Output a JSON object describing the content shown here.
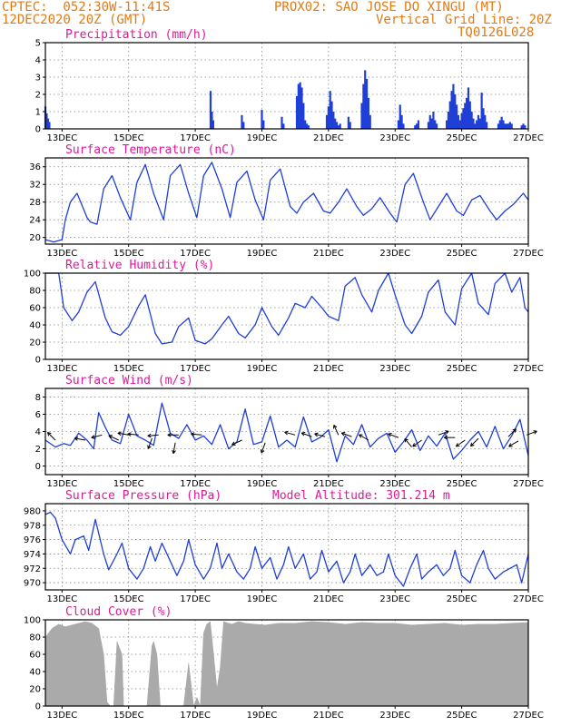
{
  "header": {
    "line1_left": "CPTEC:  052:30W-11:41S",
    "line1_right": "PROX02: SAO JOSE DO XINGU (MT)",
    "line2_left": "12DEC2020 20Z (GMT)",
    "line2_right": "Vertical Grid Line: 20Z",
    "line3_right": "TQ0126L028"
  },
  "colors": {
    "header": "#e07a16",
    "title": "#e0189a",
    "line": "#1f3fd6",
    "cloud": "#aaaaaa"
  },
  "chart_data": [
    {
      "type": "bar",
      "title": "Precipitation (mm/h)",
      "ylim": [
        0,
        5
      ],
      "yticks": [
        0,
        1,
        2,
        3,
        4,
        5
      ],
      "xlim": [
        0,
        14.5
      ],
      "xticks": [
        {
          "x": 0.5,
          "label": "13DEC"
        },
        {
          "x": 2.5,
          "label": "15DEC"
        },
        {
          "x": 4.5,
          "label": "17DEC"
        },
        {
          "x": 6.5,
          "label": "19DEC"
        },
        {
          "x": 8.5,
          "label": "21DEC"
        },
        {
          "x": 10.5,
          "label": "23DEC"
        },
        {
          "x": 12.5,
          "label": "25DEC"
        },
        {
          "x": 14.5,
          "label": "27DEC"
        }
      ],
      "x": [
        0.0,
        0.04,
        0.08,
        0.12,
        4.96,
        5.0,
        5.04,
        5.9,
        5.95,
        6.5,
        6.55,
        7.1,
        7.15,
        7.55,
        7.6,
        7.65,
        7.7,
        7.75,
        7.8,
        7.85,
        7.9,
        8.45,
        8.5,
        8.55,
        8.6,
        8.65,
        8.7,
        8.75,
        8.8,
        8.85,
        9.1,
        9.15,
        9.5,
        9.55,
        9.6,
        9.65,
        9.7,
        9.75,
        10.6,
        10.65,
        10.7,
        10.75,
        11.1,
        11.15,
        11.2,
        11.5,
        11.55,
        11.6,
        11.65,
        11.7,
        11.75,
        12.05,
        12.1,
        12.15,
        12.2,
        12.25,
        12.3,
        12.35,
        12.4,
        12.45,
        12.5,
        12.55,
        12.6,
        12.65,
        12.7,
        12.75,
        12.8,
        12.85,
        12.9,
        12.95,
        13.0,
        13.05,
        13.1,
        13.15,
        13.2,
        13.25,
        13.6,
        13.65,
        13.7,
        13.75,
        13.8,
        13.85,
        13.9,
        13.95,
        14.0,
        14.3,
        14.35,
        14.4
      ],
      "values": [
        1.3,
        0.9,
        0.6,
        0.4,
        2.2,
        1.0,
        0.5,
        0.8,
        0.4,
        1.1,
        0.5,
        0.7,
        0.3,
        1.9,
        2.6,
        2.7,
        2.4,
        1.5,
        0.5,
        0.3,
        0.2,
        0.8,
        1.3,
        2.2,
        1.6,
        1.0,
        0.6,
        0.4,
        0.2,
        0.3,
        0.7,
        0.4,
        1.5,
        2.6,
        3.4,
        2.9,
        1.8,
        0.8,
        0.5,
        1.4,
        0.8,
        0.3,
        0.2,
        0.3,
        0.5,
        0.4,
        0.8,
        0.6,
        1.0,
        0.5,
        0.3,
        0.5,
        1.0,
        1.6,
        2.2,
        2.6,
        2.0,
        1.4,
        0.8,
        0.5,
        0.9,
        1.2,
        1.5,
        1.8,
        2.4,
        1.6,
        1.0,
        0.6,
        0.3,
        0.5,
        0.8,
        0.6,
        2.1,
        1.2,
        0.8,
        0.4,
        0.3,
        0.5,
        0.7,
        0.5,
        0.3,
        0.3,
        0.3,
        0.4,
        0.3,
        0.2,
        0.3,
        0.2
      ]
    },
    {
      "type": "line",
      "title": "Surface Temperature (nC)",
      "ylim": [
        18.5,
        38
      ],
      "yticks": [
        20,
        24,
        28,
        32,
        36
      ],
      "xlim": [
        0,
        14.5
      ],
      "xticks": [
        {
          "x": 0.5,
          "label": "13DEC"
        },
        {
          "x": 2.5,
          "label": "15DEC"
        },
        {
          "x": 4.5,
          "label": "17DEC"
        },
        {
          "x": 6.5,
          "label": "19DEC"
        },
        {
          "x": 8.5,
          "label": "21DEC"
        },
        {
          "x": 10.5,
          "label": "23DEC"
        },
        {
          "x": 12.5,
          "label": "25DEC"
        },
        {
          "x": 14.5,
          "label": "27DEC"
        }
      ],
      "x": [
        0.0,
        0.25,
        0.5,
        0.6,
        0.75,
        0.95,
        1.25,
        1.35,
        1.55,
        1.75,
        2.0,
        2.25,
        2.55,
        2.75,
        3.0,
        3.25,
        3.55,
        3.75,
        4.05,
        4.3,
        4.55,
        4.75,
        5.0,
        5.3,
        5.55,
        5.75,
        6.05,
        6.3,
        6.55,
        6.75,
        7.05,
        7.35,
        7.55,
        7.75,
        8.05,
        8.35,
        8.55,
        8.8,
        9.05,
        9.35,
        9.55,
        9.8,
        10.05,
        10.35,
        10.55,
        10.8,
        11.05,
        11.35,
        11.55,
        11.8,
        12.05,
        12.35,
        12.55,
        12.8,
        13.05,
        13.35,
        13.55,
        13.8,
        14.05,
        14.35,
        14.5
      ],
      "values": [
        19.5,
        19.0,
        19.5,
        24.0,
        28.0,
        30.0,
        24.5,
        23.5,
        23.0,
        31.0,
        34.0,
        29.0,
        24.0,
        32.5,
        36.5,
        30.0,
        24.0,
        34.0,
        36.5,
        30.0,
        24.5,
        34.0,
        37.0,
        31.0,
        24.5,
        32.5,
        35.0,
        28.5,
        24.0,
        33.0,
        35.5,
        27.0,
        25.5,
        28.0,
        30.0,
        26.0,
        25.5,
        28.0,
        31.0,
        27.0,
        25.0,
        26.5,
        29.0,
        25.5,
        23.5,
        32.0,
        34.5,
        28.0,
        24.0,
        27.0,
        30.0,
        26.0,
        25.0,
        28.5,
        29.5,
        26.0,
        24.0,
        26.0,
        27.5,
        30.0,
        28.5
      ]
    },
    {
      "type": "line",
      "title": "Relative Humidity (%)",
      "ylim": [
        0,
        100
      ],
      "yticks": [
        0,
        20,
        40,
        60,
        80,
        100
      ],
      "xlim": [
        0,
        14.5
      ],
      "xticks": [
        {
          "x": 0.5,
          "label": "13DEC"
        },
        {
          "x": 2.5,
          "label": "15DEC"
        },
        {
          "x": 4.5,
          "label": "17DEC"
        },
        {
          "x": 6.5,
          "label": "19DEC"
        },
        {
          "x": 8.5,
          "label": "21DEC"
        },
        {
          "x": 10.5,
          "label": "23DEC"
        },
        {
          "x": 12.5,
          "label": "25DEC"
        },
        {
          "x": 14.5,
          "label": "27DEC"
        }
      ],
      "x": [
        0.0,
        0.4,
        0.55,
        0.8,
        1.0,
        1.25,
        1.5,
        1.8,
        2.0,
        2.25,
        2.5,
        2.8,
        3.0,
        3.3,
        3.5,
        3.8,
        4.0,
        4.3,
        4.5,
        4.8,
        5.0,
        5.3,
        5.5,
        5.8,
        6.0,
        6.3,
        6.5,
        6.8,
        7.0,
        7.3,
        7.5,
        7.8,
        8.0,
        8.3,
        8.5,
        8.8,
        9.0,
        9.3,
        9.5,
        9.8,
        10.0,
        10.3,
        10.5,
        10.8,
        11.0,
        11.3,
        11.5,
        11.8,
        12.0,
        12.3,
        12.5,
        12.8,
        13.0,
        13.3,
        13.5,
        13.8,
        14.0,
        14.25,
        14.4,
        14.5
      ],
      "values": [
        100,
        100,
        60,
        45,
        55,
        78,
        90,
        48,
        32,
        28,
        38,
        62,
        75,
        30,
        18,
        20,
        38,
        48,
        22,
        18,
        24,
        40,
        50,
        30,
        25,
        40,
        60,
        38,
        28,
        48,
        65,
        60,
        73,
        60,
        50,
        45,
        85,
        95,
        75,
        55,
        80,
        100,
        75,
        40,
        30,
        50,
        78,
        92,
        55,
        40,
        82,
        100,
        65,
        52,
        88,
        100,
        78,
        95,
        60,
        55
      ]
    },
    {
      "type": "line",
      "title": "Surface Wind (m/s)",
      "ylim": [
        -1,
        9
      ],
      "yticks": [
        0,
        2,
        4,
        6,
        8
      ],
      "xlim": [
        0,
        14.5
      ],
      "xticks": [
        {
          "x": 0.5,
          "label": "13DEC"
        },
        {
          "x": 2.5,
          "label": "15DEC"
        },
        {
          "x": 4.5,
          "label": "17DEC"
        },
        {
          "x": 6.5,
          "label": "19DEC"
        },
        {
          "x": 8.5,
          "label": "21DEC"
        },
        {
          "x": 10.5,
          "label": "23DEC"
        },
        {
          "x": 12.5,
          "label": "25DEC"
        },
        {
          "x": 14.5,
          "label": "27DEC"
        }
      ],
      "x": [
        0.0,
        0.3,
        0.55,
        0.75,
        1.0,
        1.25,
        1.45,
        1.6,
        1.8,
        2.0,
        2.25,
        2.5,
        2.75,
        3.0,
        3.25,
        3.5,
        3.75,
        4.0,
        4.25,
        4.5,
        4.75,
        5.0,
        5.25,
        5.5,
        5.75,
        6.0,
        6.25,
        6.5,
        6.75,
        7.0,
        7.25,
        7.5,
        7.75,
        8.0,
        8.25,
        8.5,
        8.75,
        9.0,
        9.25,
        9.5,
        9.75,
        10.0,
        10.25,
        10.5,
        10.75,
        11.0,
        11.25,
        11.5,
        11.75,
        12.0,
        12.25,
        12.5,
        12.75,
        13.0,
        13.25,
        13.5,
        13.75,
        14.0,
        14.25,
        14.5
      ],
      "values": [
        3.0,
        2.2,
        2.6,
        2.4,
        3.8,
        3.0,
        2.0,
        6.2,
        4.5,
        3.0,
        2.6,
        6.0,
        3.5,
        3.0,
        2.4,
        7.3,
        3.8,
        3.2,
        4.8,
        3.0,
        3.5,
        2.5,
        4.8,
        2.0,
        2.8,
        6.6,
        2.5,
        2.8,
        5.8,
        2.2,
        3.0,
        2.2,
        5.7,
        2.8,
        3.3,
        4.2,
        0.5,
        3.5,
        2.5,
        4.8,
        2.2,
        3.2,
        3.8,
        1.6,
        2.8,
        4.2,
        1.8,
        3.5,
        2.3,
        3.8,
        0.8,
        1.8,
        3.0,
        4.0,
        2.2,
        4.6,
        2.0,
        3.5,
        5.4,
        1.2
      ],
      "vectors": [
        {
          "x": 0.3,
          "y": 3.0,
          "dir": 135
        },
        {
          "x": 1.2,
          "y": 3.0,
          "dir": 170
        },
        {
          "x": 1.7,
          "y": 3.6,
          "dir": 195
        },
        {
          "x": 2.2,
          "y": 3.0,
          "dir": 155
        },
        {
          "x": 2.5,
          "y": 3.6,
          "dir": 170
        },
        {
          "x": 2.8,
          "y": 3.6,
          "dir": 175
        },
        {
          "x": 3.4,
          "y": 3.6,
          "dir": 185
        },
        {
          "x": 4.0,
          "y": 3.6,
          "dir": 180
        },
        {
          "x": 4.7,
          "y": 3.6,
          "dir": 175
        },
        {
          "x": 3.2,
          "y": 3.2,
          "dir": 250
        },
        {
          "x": 3.9,
          "y": 2.7,
          "dir": 260
        },
        {
          "x": 5.9,
          "y": 3.0,
          "dir": 205
        },
        {
          "x": 6.6,
          "y": 2.7,
          "dir": 250
        },
        {
          "x": 7.5,
          "y": 3.6,
          "dir": 165
        },
        {
          "x": 8.0,
          "y": 3.4,
          "dir": 160
        },
        {
          "x": 8.4,
          "y": 3.4,
          "dir": 165
        },
        {
          "x": 8.8,
          "y": 3.6,
          "dir": 115
        },
        {
          "x": 9.2,
          "y": 3.4,
          "dir": 160
        },
        {
          "x": 9.7,
          "y": 3.0,
          "dir": 150
        },
        {
          "x": 10.6,
          "y": 3.3,
          "dir": 160
        },
        {
          "x": 11.3,
          "y": 3.0,
          "dir": 215
        },
        {
          "x": 11.8,
          "y": 3.6,
          "dir": 20
        },
        {
          "x": 12.3,
          "y": 3.3,
          "dir": 180
        },
        {
          "x": 12.6,
          "y": 3.0,
          "dir": 215
        },
        {
          "x": 13.0,
          "y": 3.2,
          "dir": 225
        },
        {
          "x": 13.9,
          "y": 3.4,
          "dir": 45
        },
        {
          "x": 14.45,
          "y": 3.6,
          "dir": 20
        },
        {
          "x": 14.2,
          "y": 2.9,
          "dir": 210
        },
        {
          "x": 11.0,
          "y": 2.2,
          "dir": 130
        }
      ]
    },
    {
      "type": "line",
      "title": "Surface Pressure (hPa)",
      "annotation": "Model Altitude: 301.214 m",
      "ylim": [
        969,
        981
      ],
      "yticks": [
        970,
        972,
        974,
        976,
        978,
        980
      ],
      "xlim": [
        0,
        14.5
      ],
      "xticks": [
        {
          "x": 0.5,
          "label": "13DEC"
        },
        {
          "x": 2.5,
          "label": "15DEC"
        },
        {
          "x": 4.5,
          "label": "17DEC"
        },
        {
          "x": 6.5,
          "label": "19DEC"
        },
        {
          "x": 8.5,
          "label": "21DEC"
        },
        {
          "x": 10.5,
          "label": "23DEC"
        },
        {
          "x": 12.5,
          "label": "25DEC"
        },
        {
          "x": 14.5,
          "label": "27DEC"
        }
      ],
      "x": [
        0.0,
        0.15,
        0.3,
        0.5,
        0.75,
        0.9,
        1.15,
        1.3,
        1.5,
        1.75,
        1.9,
        2.15,
        2.3,
        2.5,
        2.75,
        2.95,
        3.15,
        3.3,
        3.5,
        3.75,
        3.95,
        4.15,
        4.3,
        4.5,
        4.75,
        4.95,
        5.15,
        5.3,
        5.5,
        5.75,
        5.95,
        6.15,
        6.3,
        6.5,
        6.75,
        6.95,
        7.15,
        7.3,
        7.5,
        7.75,
        7.95,
        8.15,
        8.3,
        8.5,
        8.75,
        8.95,
        9.15,
        9.3,
        9.5,
        9.75,
        9.95,
        10.15,
        10.3,
        10.5,
        10.75,
        10.95,
        11.15,
        11.3,
        11.5,
        11.75,
        11.95,
        12.15,
        12.3,
        12.5,
        12.75,
        12.95,
        13.15,
        13.3,
        13.5,
        13.75,
        13.95,
        14.15,
        14.3,
        14.5
      ],
      "values": [
        979.5,
        979.8,
        979.0,
        976.0,
        974.0,
        976.0,
        976.5,
        974.5,
        978.8,
        974.0,
        971.8,
        974.0,
        975.5,
        972.0,
        970.5,
        972.0,
        975.0,
        973.0,
        975.5,
        973.0,
        971.0,
        973.0,
        976.0,
        972.5,
        970.5,
        972.0,
        975.5,
        972.0,
        974.0,
        971.5,
        970.5,
        972.0,
        975.0,
        972.0,
        973.5,
        970.5,
        972.5,
        975.0,
        972.0,
        974.0,
        970.5,
        971.5,
        974.5,
        971.5,
        973.0,
        970.0,
        971.5,
        974.0,
        971.0,
        972.5,
        971.0,
        971.5,
        974.0,
        971.0,
        969.5,
        972.0,
        974.0,
        970.5,
        971.5,
        972.5,
        971.0,
        972.0,
        974.5,
        971.0,
        970.0,
        972.5,
        974.5,
        972.0,
        970.5,
        971.5,
        972.0,
        972.5,
        970.0,
        974.0
      ]
    },
    {
      "type": "area",
      "title": "Cloud Cover (%)",
      "ylim": [
        0,
        100
      ],
      "yticks": [
        0,
        20,
        40,
        60,
        80,
        100
      ],
      "xlim": [
        0,
        14.5
      ],
      "xticks": [
        {
          "x": 0.5,
          "label": "13DEC"
        },
        {
          "x": 2.5,
          "label": "15DEC"
        },
        {
          "x": 4.5,
          "label": "17DEC"
        },
        {
          "x": 6.5,
          "label": "19DEC"
        },
        {
          "x": 8.5,
          "label": "21DEC"
        },
        {
          "x": 10.5,
          "label": "23DEC"
        },
        {
          "x": 12.5,
          "label": "25DEC"
        },
        {
          "x": 14.5,
          "label": "27DEC"
        }
      ],
      "x": [
        0.0,
        0.1,
        0.2,
        0.4,
        0.6,
        0.9,
        1.2,
        1.4,
        1.6,
        1.75,
        1.85,
        1.95,
        2.05,
        2.15,
        2.2,
        2.3,
        2.35,
        2.45,
        2.55,
        2.65,
        2.8,
        2.95,
        3.05,
        3.2,
        3.25,
        3.35,
        3.45,
        3.55,
        3.65,
        3.75,
        3.85,
        3.95,
        4.05,
        4.15,
        4.3,
        4.45,
        4.55,
        4.65,
        4.75,
        4.85,
        4.95,
        5.05,
        5.15,
        5.25,
        5.35,
        5.5,
        5.6,
        5.8,
        6.0,
        6.3,
        6.6,
        7.0,
        7.5,
        8.0,
        8.5,
        9.0,
        9.5,
        10.0,
        10.5,
        11.0,
        11.5,
        12.0,
        12.5,
        13.0,
        13.5,
        14.0,
        14.5
      ],
      "values": [
        80,
        85,
        90,
        95,
        92,
        95,
        98,
        96,
        90,
        60,
        5,
        0,
        0,
        75,
        70,
        60,
        0,
        0,
        0,
        0,
        0,
        0,
        0,
        70,
        75,
        60,
        0,
        0,
        0,
        0,
        0,
        0,
        0,
        0,
        50,
        0,
        10,
        0,
        85,
        95,
        98,
        60,
        20,
        45,
        98,
        96,
        95,
        98,
        96,
        95,
        94,
        96,
        96,
        98,
        97,
        95,
        97,
        96,
        96,
        94,
        95,
        96,
        94,
        95,
        95,
        96,
        97
      ]
    }
  ]
}
